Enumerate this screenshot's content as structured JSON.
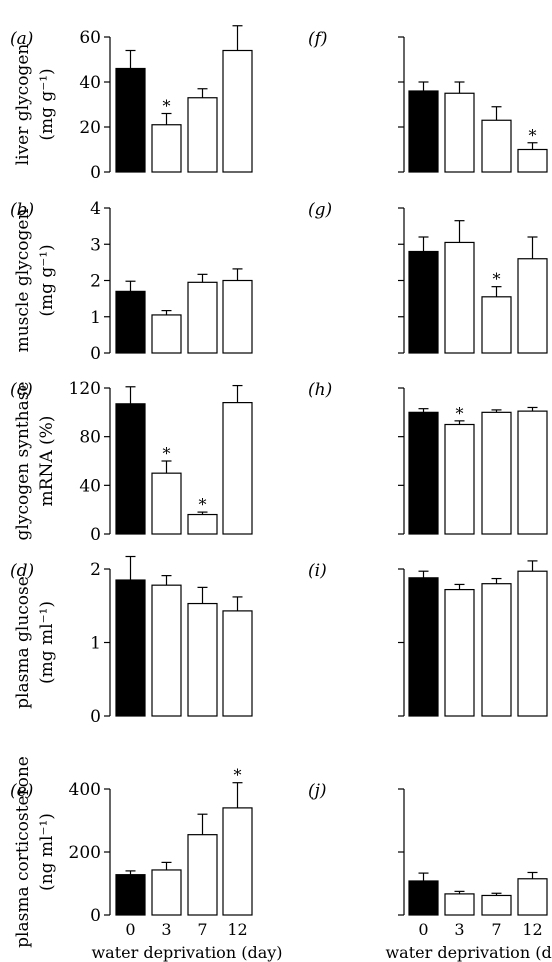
{
  "colors": {
    "control": "#000000",
    "treated": "#ffffff",
    "axis": "#000000"
  },
  "xlabel_left": "water deprivation (day)",
  "xlabel_right": "water deprivation (day)",
  "chart_data": [
    {
      "type": "bar",
      "panel": "(a)",
      "categories": [
        "0",
        "3",
        "7",
        "12"
      ],
      "values": [
        46,
        21,
        33,
        54
      ],
      "errors": [
        8,
        5,
        4,
        11
      ],
      "significant": [
        false,
        true,
        false,
        false
      ],
      "ylabel_lines": [
        "liver glycogen",
        "(mg g⁻¹)"
      ],
      "ylim": [
        0,
        60
      ],
      "yticks": [
        0,
        20,
        40,
        60
      ],
      "yticklabels": [
        "0",
        "20",
        "40",
        "60"
      ]
    },
    {
      "type": "bar",
      "panel": "(b)",
      "categories": [
        "0",
        "3",
        "7",
        "12"
      ],
      "values": [
        1.7,
        1.05,
        1.95,
        2.0
      ],
      "errors": [
        0.28,
        0.12,
        0.22,
        0.32
      ],
      "significant": [
        false,
        false,
        false,
        false
      ],
      "ylabel_lines": [
        "muscle glycogen",
        "(mg g⁻¹)"
      ],
      "ylim": [
        0,
        4
      ],
      "yticks": [
        0,
        1,
        2,
        3,
        4
      ],
      "yticklabels": [
        "0",
        "1",
        "2",
        "3",
        "4"
      ]
    },
    {
      "type": "bar",
      "panel": "(c)",
      "categories": [
        "0",
        "3",
        "7",
        "12"
      ],
      "values": [
        107,
        50,
        16,
        108
      ],
      "errors": [
        14,
        10,
        2,
        14
      ],
      "significant": [
        false,
        true,
        true,
        false
      ],
      "ylabel_lines": [
        "glycogen synthase",
        "mRNA (%)"
      ],
      "ylim": [
        0,
        120
      ],
      "yticks": [
        0,
        40,
        80,
        120
      ],
      "yticklabels": [
        "0",
        "40",
        "80",
        "120"
      ]
    },
    {
      "type": "bar",
      "panel": "(d)",
      "categories": [
        "0",
        "3",
        "7",
        "12"
      ],
      "values": [
        1.85,
        1.78,
        1.53,
        1.43
      ],
      "errors": [
        0.32,
        0.13,
        0.22,
        0.19
      ],
      "significant": [
        false,
        false,
        false,
        false
      ],
      "ylabel_lines": [
        "plasma glucose",
        "(mg ml⁻¹)"
      ],
      "ylim": [
        0,
        2
      ],
      "yticks": [
        0,
        1,
        2
      ],
      "yticklabels": [
        "0",
        "1",
        "2"
      ]
    },
    {
      "type": "bar",
      "panel": "(e)",
      "categories": [
        "0",
        "3",
        "7",
        "12"
      ],
      "values": [
        128,
        143,
        255,
        340
      ],
      "errors": [
        12,
        24,
        65,
        80
      ],
      "significant": [
        false,
        false,
        false,
        true
      ],
      "ylabel_lines": [
        "plasma corticosterone",
        "(ng ml⁻¹)"
      ],
      "ylim": [
        0,
        400
      ],
      "yticks": [
        0,
        200,
        400
      ],
      "yticklabels": [
        "0",
        "200",
        "400"
      ]
    },
    {
      "type": "bar",
      "panel": "(f)",
      "categories": [
        "0",
        "3",
        "7",
        "12"
      ],
      "values": [
        36,
        35,
        23,
        10
      ],
      "errors": [
        4,
        5,
        6,
        3
      ],
      "significant": [
        false,
        false,
        false,
        true
      ],
      "ylim": [
        0,
        60
      ],
      "yticks": [
        0,
        20,
        40,
        60
      ]
    },
    {
      "type": "bar",
      "panel": "(g)",
      "categories": [
        "0",
        "3",
        "7",
        "12"
      ],
      "values": [
        2.8,
        3.05,
        1.55,
        2.6
      ],
      "errors": [
        0.4,
        0.6,
        0.28,
        0.6
      ],
      "significant": [
        false,
        false,
        true,
        false
      ],
      "ylim": [
        0,
        4
      ],
      "yticks": [
        0,
        1,
        2,
        3,
        4
      ]
    },
    {
      "type": "bar",
      "panel": "(h)",
      "categories": [
        "0",
        "3",
        "7",
        "12"
      ],
      "values": [
        100,
        90,
        100,
        101
      ],
      "errors": [
        3,
        3,
        2,
        3
      ],
      "significant": [
        false,
        true,
        false,
        false
      ],
      "ylim": [
        0,
        120
      ],
      "yticks": [
        0,
        40,
        80,
        120
      ]
    },
    {
      "type": "bar",
      "panel": "(i)",
      "categories": [
        "0",
        "3",
        "7",
        "12"
      ],
      "values": [
        1.88,
        1.72,
        1.8,
        1.97
      ],
      "errors": [
        0.09,
        0.07,
        0.07,
        0.14
      ],
      "significant": [
        false,
        false,
        false,
        false
      ],
      "ylim": [
        0,
        2
      ],
      "yticks": [
        0,
        1,
        2
      ]
    },
    {
      "type": "bar",
      "panel": "(j)",
      "categories": [
        "0",
        "3",
        "7",
        "12"
      ],
      "values": [
        108,
        67,
        62,
        115
      ],
      "errors": [
        25,
        8,
        7,
        20
      ],
      "significant": [
        false,
        false,
        false,
        false
      ],
      "ylim": [
        0,
        400
      ],
      "yticks": [
        0,
        200,
        400
      ]
    }
  ]
}
